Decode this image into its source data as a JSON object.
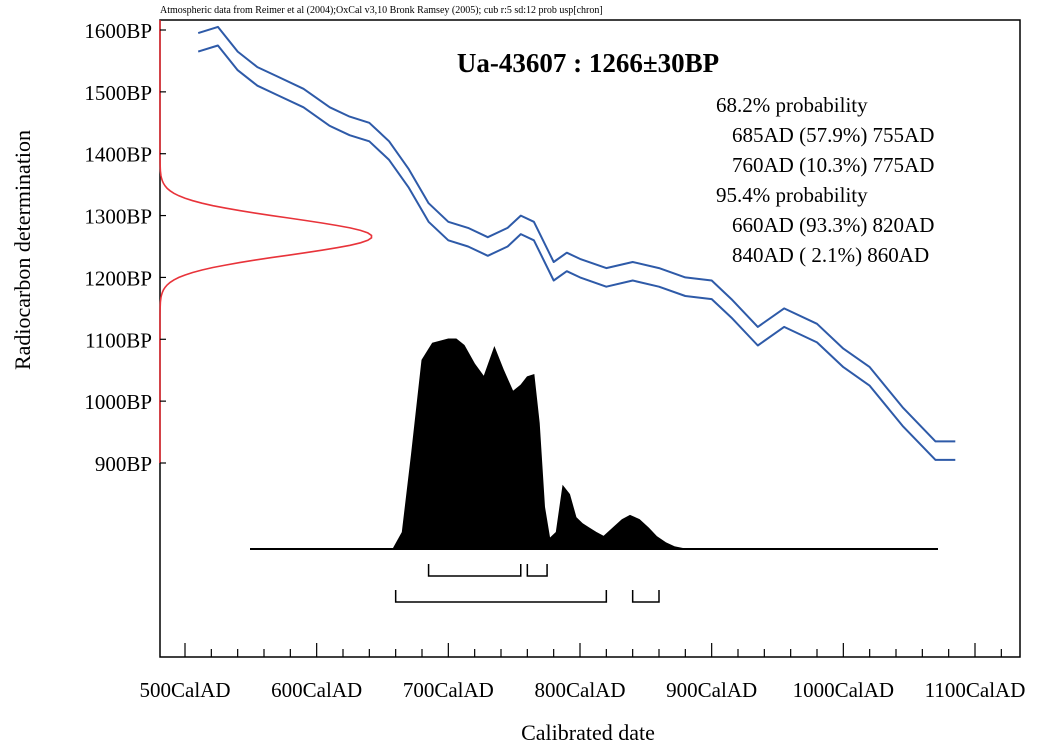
{
  "chart_data": {
    "type": "area",
    "source_note": "Atmospheric data from Reimer et al (2004);OxCal v3,10 Bronk Ramsey (2005); cub r:5 sd:12 prob usp[chron]",
    "title": "Ua-43607 : 1266±30BP",
    "xlabel": "Calibrated date",
    "ylabel": "Radiocarbon determination",
    "x_ticks": [
      "500CalAD",
      "600CalAD",
      "700CalAD",
      "800CalAD",
      "900CalAD",
      "1000CalAD",
      "1100CalAD"
    ],
    "x_tick_values": [
      500,
      600,
      700,
      800,
      900,
      1000,
      1100
    ],
    "y_ticks": [
      "1600BP",
      "1500BP",
      "1400BP",
      "1300BP",
      "1200BP",
      "1100BP",
      "1000BP",
      "900BP"
    ],
    "y_tick_values": [
      1600,
      1500,
      1400,
      1300,
      1200,
      1100,
      1000,
      900
    ],
    "xlim": [
      440,
      1130
    ],
    "ylim": [
      780,
      1600
    ],
    "probability_ranges": [
      {
        "heading": "68.2% probability",
        "lines": [
          "685AD (57.9%) 755AD",
          "760AD (10.3%) 775AD"
        ]
      },
      {
        "heading": "95.4% probability",
        "lines": [
          "660AD (93.3%) 820AD",
          "840AD ( 2.1%) 860AD"
        ]
      }
    ],
    "range_brackets": {
      "p68": [
        [
          685,
          755
        ],
        [
          760,
          775
        ]
      ],
      "p95": [
        [
          660,
          820
        ],
        [
          840,
          860
        ]
      ]
    },
    "calibration_curve": {
      "x": [
        510,
        525,
        540,
        555,
        570,
        590,
        610,
        625,
        640,
        655,
        670,
        685,
        700,
        715,
        730,
        745,
        755,
        765,
        780,
        790,
        800,
        820,
        840,
        860,
        880,
        900,
        915,
        935,
        955,
        980,
        1000,
        1020,
        1045,
        1070,
        1085
      ],
      "mid": [
        1580,
        1590,
        1550,
        1525,
        1510,
        1490,
        1460,
        1445,
        1435,
        1405,
        1360,
        1305,
        1275,
        1265,
        1250,
        1265,
        1285,
        1275,
        1210,
        1225,
        1215,
        1200,
        1210,
        1200,
        1185,
        1180,
        1150,
        1105,
        1135,
        1110,
        1070,
        1040,
        975,
        920,
        920
      ],
      "band_half_width": 15
    },
    "measurement_curve": {
      "mean": 1266,
      "sd": 30,
      "color": "#e8333a"
    },
    "calibrated_distribution": {
      "baseline_y": 820,
      "x": [
        658,
        665,
        672,
        680,
        688,
        694,
        700,
        706,
        712,
        720,
        727,
        735,
        742,
        749,
        755,
        760,
        765,
        769,
        773,
        777,
        782,
        787,
        792,
        797,
        802,
        807,
        812,
        818,
        825,
        832,
        838,
        845,
        852,
        858,
        865,
        872,
        880,
        888
      ],
      "density": [
        0,
        0.08,
        0.45,
        0.9,
        0.98,
        0.99,
        1.0,
        1.0,
        0.97,
        0.88,
        0.82,
        0.96,
        0.85,
        0.75,
        0.78,
        0.82,
        0.83,
        0.6,
        0.2,
        0.05,
        0.08,
        0.3,
        0.26,
        0.15,
        0.12,
        0.1,
        0.08,
        0.06,
        0.1,
        0.14,
        0.16,
        0.14,
        0.1,
        0.06,
        0.03,
        0.01,
        0,
        0
      ],
      "peak_height_bp": 290
    },
    "colors": {
      "curve": "#2e5aa8",
      "distribution": "#000000",
      "measurement": "#e8333a",
      "axis": "#000000"
    }
  }
}
